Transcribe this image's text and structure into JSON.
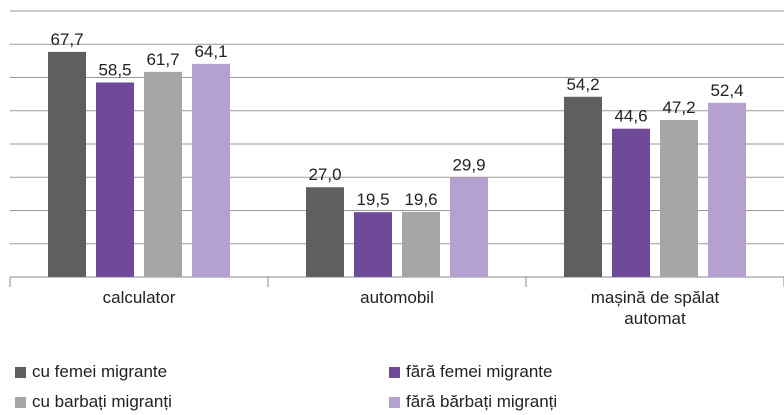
{
  "chart_data": {
    "type": "bar",
    "categories": [
      "calculator",
      "automobil",
      "mașină de spălat automat"
    ],
    "series": [
      {
        "name": "cu femei migrante",
        "color": "#5f5f5f",
        "values": [
          67.7,
          27.0,
          54.2
        ],
        "value_labels": [
          "67,7",
          "27,0",
          "54,2"
        ]
      },
      {
        "name": "fără femei migrante",
        "color": "#6f4a98",
        "values": [
          58.5,
          19.5,
          44.6
        ],
        "value_labels": [
          "58,5",
          "19,5",
          "44,6"
        ]
      },
      {
        "name": "cu barbați migranți",
        "color": "#a6a6a6",
        "values": [
          61.7,
          19.6,
          47.2
        ],
        "value_labels": [
          "61,7",
          "19,6",
          "47,2"
        ]
      },
      {
        "name": "fără bărbați migranți",
        "color": "#b4a1cf",
        "values": [
          64.1,
          29.9,
          52.4
        ],
        "value_labels": [
          "64,1",
          "29,9",
          "52,4"
        ]
      }
    ],
    "ylim": [
      0,
      80
    ],
    "yticks": [
      0,
      10,
      20,
      30,
      40,
      50,
      60,
      70,
      80
    ],
    "grid": true,
    "legend": "bottom"
  }
}
